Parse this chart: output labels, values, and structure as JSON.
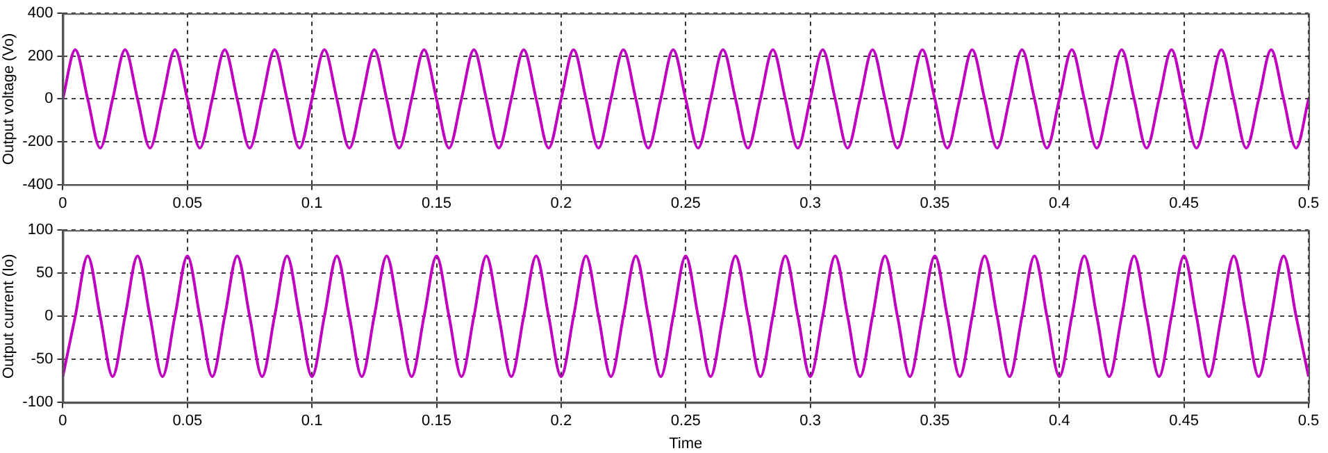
{
  "chart_data": [
    {
      "type": "line",
      "ylabel": "Output voltage (Vo)",
      "grid": true,
      "xlim": [
        0,
        0.5
      ],
      "ylim": [
        -400,
        400
      ],
      "xticks": [
        0,
        0.05,
        0.1,
        0.15,
        0.2,
        0.25,
        0.3,
        0.35,
        0.4,
        0.45,
        0.5
      ],
      "yticks": [
        -400,
        -200,
        0,
        200,
        400
      ],
      "x": [
        0,
        0.005,
        0.01,
        0.015,
        0.02,
        0.025,
        0.03,
        0.035,
        0.04,
        0.045,
        0.05,
        0.055,
        0.06,
        0.065,
        0.07,
        0.075,
        0.08,
        0.085,
        0.09,
        0.095,
        0.1,
        0.105,
        0.11,
        0.115,
        0.12,
        0.125,
        0.13,
        0.135,
        0.14,
        0.145,
        0.15,
        0.155,
        0.16,
        0.165,
        0.17,
        0.175,
        0.18,
        0.185,
        0.19,
        0.195,
        0.2,
        0.205,
        0.21,
        0.215,
        0.22,
        0.225,
        0.23,
        0.235,
        0.24,
        0.245,
        0.25,
        0.255,
        0.26,
        0.265,
        0.27,
        0.275,
        0.28,
        0.285,
        0.29,
        0.295,
        0.3,
        0.305,
        0.31,
        0.315,
        0.32,
        0.325,
        0.33,
        0.335,
        0.34,
        0.345,
        0.35,
        0.355,
        0.36,
        0.365,
        0.37,
        0.375,
        0.38,
        0.385,
        0.39,
        0.395,
        0.4,
        0.405,
        0.41,
        0.415,
        0.42,
        0.425,
        0.43,
        0.435,
        0.44,
        0.445,
        0.45,
        0.455,
        0.46,
        0.465,
        0.47,
        0.475,
        0.48,
        0.485,
        0.49,
        0.495,
        0.5
      ],
      "series": [
        {
          "color": "#c000c0",
          "values": [
            0,
            230,
            0,
            -230,
            0,
            230,
            0,
            -230,
            0,
            230,
            0,
            -230,
            0,
            230,
            0,
            -230,
            0,
            230,
            0,
            -230,
            0,
            230,
            0,
            -230,
            0,
            230,
            0,
            -230,
            0,
            230,
            0,
            -230,
            0,
            230,
            0,
            -230,
            0,
            230,
            0,
            -230,
            0,
            230,
            0,
            -230,
            0,
            230,
            0,
            -230,
            0,
            230,
            0,
            -230,
            0,
            230,
            0,
            -230,
            0,
            230,
            0,
            -230,
            0,
            230,
            0,
            -230,
            0,
            230,
            0,
            -230,
            0,
            230,
            0,
            -230,
            0,
            230,
            0,
            -230,
            0,
            230,
            0,
            -230,
            0,
            230,
            0,
            -230,
            0,
            230,
            0,
            -230,
            0,
            230,
            0,
            -230,
            0,
            230,
            0,
            -230,
            0,
            230,
            0,
            -230,
            0
          ]
        }
      ]
    },
    {
      "type": "line",
      "xlabel": "Time",
      "ylabel": "Output current (Io)",
      "grid": true,
      "xlim": [
        0,
        0.5
      ],
      "ylim": [
        -100,
        100
      ],
      "xticks": [
        0,
        0.05,
        0.1,
        0.15,
        0.2,
        0.25,
        0.3,
        0.35,
        0.4,
        0.45,
        0.5
      ],
      "yticks": [
        -100,
        -50,
        0,
        50,
        100
      ],
      "x": [
        0,
        0.005,
        0.01,
        0.015,
        0.02,
        0.025,
        0.03,
        0.035,
        0.04,
        0.045,
        0.05,
        0.055,
        0.06,
        0.065,
        0.07,
        0.075,
        0.08,
        0.085,
        0.09,
        0.095,
        0.1,
        0.105,
        0.11,
        0.115,
        0.12,
        0.125,
        0.13,
        0.135,
        0.14,
        0.145,
        0.15,
        0.155,
        0.16,
        0.165,
        0.17,
        0.175,
        0.18,
        0.185,
        0.19,
        0.195,
        0.2,
        0.205,
        0.21,
        0.215,
        0.22,
        0.225,
        0.23,
        0.235,
        0.24,
        0.245,
        0.25,
        0.255,
        0.26,
        0.265,
        0.27,
        0.275,
        0.28,
        0.285,
        0.29,
        0.295,
        0.3,
        0.305,
        0.31,
        0.315,
        0.32,
        0.325,
        0.33,
        0.335,
        0.34,
        0.345,
        0.35,
        0.355,
        0.36,
        0.365,
        0.37,
        0.375,
        0.38,
        0.385,
        0.39,
        0.395,
        0.4,
        0.405,
        0.41,
        0.415,
        0.42,
        0.425,
        0.43,
        0.435,
        0.44,
        0.445,
        0.45,
        0.455,
        0.46,
        0.465,
        0.47,
        0.475,
        0.48,
        0.485,
        0.49,
        0.495,
        0.5
      ],
      "series": [
        {
          "color": "#c000c0",
          "values": [
            -70,
            0,
            70,
            0,
            -70,
            0,
            70,
            0,
            -70,
            0,
            70,
            0,
            -70,
            0,
            70,
            0,
            -70,
            0,
            70,
            0,
            -70,
            0,
            70,
            0,
            -70,
            0,
            70,
            0,
            -70,
            0,
            70,
            0,
            -70,
            0,
            70,
            0,
            -70,
            0,
            70,
            0,
            -70,
            0,
            70,
            0,
            -70,
            0,
            70,
            0,
            -70,
            0,
            70,
            0,
            -70,
            0,
            70,
            0,
            -70,
            0,
            70,
            0,
            -70,
            0,
            70,
            0,
            -70,
            0,
            70,
            0,
            -70,
            0,
            70,
            0,
            -70,
            0,
            70,
            0,
            -70,
            0,
            70,
            0,
            -70,
            0,
            70,
            0,
            -70,
            0,
            70,
            0,
            -70,
            0,
            70,
            0,
            -70,
            0,
            70,
            0,
            -70,
            0,
            70,
            0,
            -70
          ]
        }
      ]
    }
  ]
}
